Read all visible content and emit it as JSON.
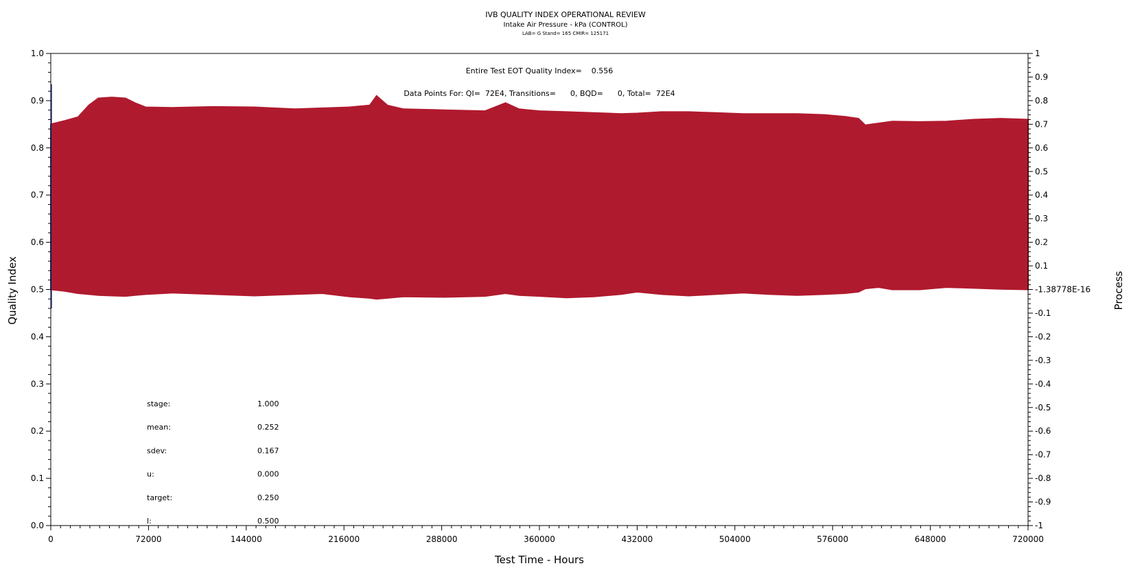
{
  "chart_data": {
    "type": "area",
    "title": "IVB QUALITY INDEX OPERATIONAL REVIEW",
    "subtitle": "Intake Air Pressure - kPa (CONTROL)",
    "subtitle2": "LAB= G Stand= 165 CMIR= 125171",
    "annotation_qi": "Entire Test EOT Quality Index=    0.556",
    "annotation_points": "Data Points For: QI=  72E4, Transitions=      0, BQD=      0, Total=  72E4",
    "xlabel": "Test Time - Hours",
    "ylabel": "Quality Index",
    "y2label": "Process",
    "xlim": [
      0,
      720000
    ],
    "ylim": [
      0,
      1
    ],
    "y2lim": [
      -1,
      1
    ],
    "x_ticks": [
      "0",
      "72000",
      "144000",
      "216000",
      "288000",
      "360000",
      "432000",
      "504000",
      "576000",
      "648000",
      "720000"
    ],
    "y_ticks": [
      "0.0",
      "0.1",
      "0.2",
      "0.3",
      "0.4",
      "0.5",
      "0.6",
      "0.7",
      "0.8",
      "0.9",
      "1.0"
    ],
    "y2_ticks": [
      "-1",
      "-0.9",
      "-0.8",
      "-0.7",
      "-0.6",
      "-0.5",
      "-0.4",
      "-0.3",
      "-0.2",
      "-0.1",
      "-1.38778E-16",
      "0.1",
      "0.2",
      "0.3",
      "0.4",
      "0.5",
      "0.6",
      "0.7",
      "0.8",
      "0.9",
      "1"
    ],
    "grid": false,
    "band_color": "#b01a2e",
    "spike_color": "#3a3a9a",
    "initial_spike": {
      "x": 0,
      "low": 0.46,
      "high": 0.935
    },
    "series": [
      {
        "x": [
          0,
          10000,
          20000,
          28000,
          35000,
          45000,
          55000,
          62000,
          70000,
          90000,
          120000,
          150000,
          180000,
          200000,
          220000,
          235000,
          240000,
          248000,
          260000,
          290000,
          320000,
          335000,
          345000,
          360000,
          380000,
          400000,
          420000,
          432000,
          450000,
          470000,
          490000,
          510000,
          530000,
          550000,
          570000,
          585000,
          595000,
          600000,
          610000,
          620000,
          640000,
          660000,
          680000,
          700000,
          720000
        ],
        "upper": [
          0.85,
          0.857,
          0.865,
          0.89,
          0.905,
          0.907,
          0.905,
          0.895,
          0.886,
          0.885,
          0.887,
          0.886,
          0.882,
          0.884,
          0.886,
          0.89,
          0.91,
          0.89,
          0.882,
          0.88,
          0.878,
          0.895,
          0.882,
          0.878,
          0.876,
          0.874,
          0.872,
          0.873,
          0.876,
          0.876,
          0.874,
          0.872,
          0.872,
          0.872,
          0.87,
          0.866,
          0.862,
          0.848,
          0.852,
          0.856,
          0.855,
          0.856,
          0.86,
          0.862,
          0.86
        ],
        "lower": [
          0.5,
          0.497,
          0.492,
          0.49,
          0.488,
          0.487,
          0.486,
          0.488,
          0.49,
          0.493,
          0.49,
          0.487,
          0.49,
          0.492,
          0.485,
          0.482,
          0.48,
          0.482,
          0.485,
          0.484,
          0.486,
          0.492,
          0.488,
          0.486,
          0.483,
          0.485,
          0.49,
          0.495,
          0.49,
          0.487,
          0.49,
          0.493,
          0.49,
          0.488,
          0.49,
          0.492,
          0.495,
          0.502,
          0.505,
          0.5,
          0.5,
          0.505,
          0.503,
          0.501,
          0.5
        ]
      }
    ],
    "stats": [
      {
        "label": "stage:",
        "value": "1.000"
      },
      {
        "label": "mean:",
        "value": "0.252"
      },
      {
        "label": "sdev:",
        "value": "0.167"
      },
      {
        "label": "u:",
        "value": "0.000"
      },
      {
        "label": "target:",
        "value": "0.250"
      },
      {
        "label": "l:",
        "value": "0.500"
      }
    ]
  }
}
